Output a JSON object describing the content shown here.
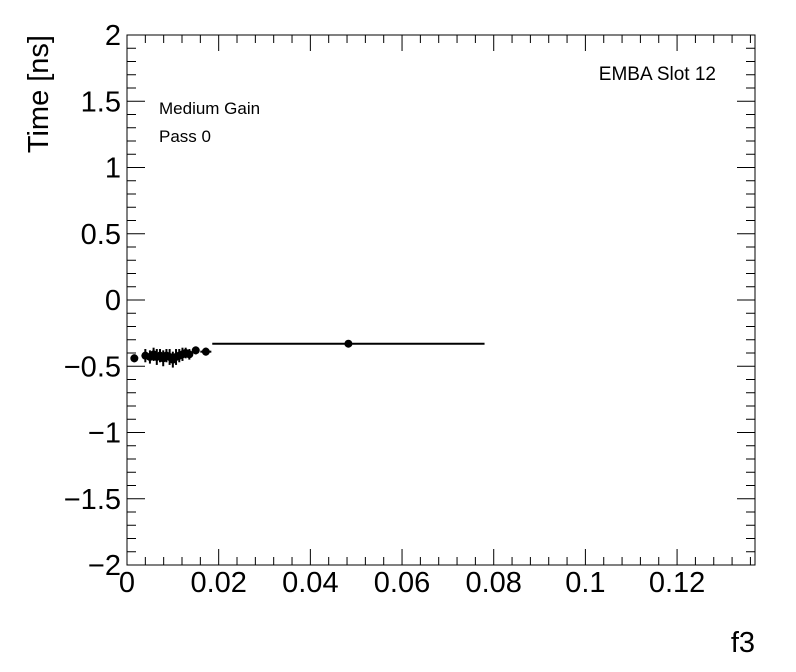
{
  "chart_data": {
    "type": "scatter",
    "title": "",
    "xlabel": "f3",
    "ylabel": "Time [ns]",
    "xlim": [
      0,
      0.137
    ],
    "ylim": [
      -2,
      2
    ],
    "grid": false,
    "x_ticks": [
      0,
      0.02,
      0.04,
      0.06,
      0.08,
      0.1,
      0.12
    ],
    "x_tick_labels": [
      "0",
      "0.02",
      "0.04",
      "0.06",
      "0.08",
      "0.1",
      "0.12"
    ],
    "y_ticks": [
      -2,
      -1.5,
      -1,
      -0.5,
      0,
      0.5,
      1,
      1.5,
      2
    ],
    "y_tick_labels": [
      "−2",
      "−1.5",
      "−1",
      "−0.5",
      "0",
      "0.5",
      "1",
      "1.5",
      "2"
    ],
    "annotations": {
      "top_right": "EMBA Slot 12",
      "line1": "Medium Gain",
      "line2": "Pass 0"
    },
    "series": [
      {
        "points": [
          {
            "x": 0.0016,
            "y": -0.44,
            "xerr": 0.0008,
            "yerr": 0.03
          },
          {
            "x": 0.004,
            "y": -0.42,
            "xerr": 0.0006,
            "yerr": 0.05
          },
          {
            "x": 0.005,
            "y": -0.43,
            "xerr": 0.0005,
            "yerr": 0.05
          },
          {
            "x": 0.0058,
            "y": -0.41,
            "xerr": 0.0004,
            "yerr": 0.05
          },
          {
            "x": 0.0065,
            "y": -0.43,
            "xerr": 0.0004,
            "yerr": 0.06
          },
          {
            "x": 0.0072,
            "y": -0.42,
            "xerr": 0.0004,
            "yerr": 0.05
          },
          {
            "x": 0.0079,
            "y": -0.44,
            "xerr": 0.0004,
            "yerr": 0.06
          },
          {
            "x": 0.0086,
            "y": -0.42,
            "xerr": 0.0004,
            "yerr": 0.05
          },
          {
            "x": 0.0093,
            "y": -0.43,
            "xerr": 0.0004,
            "yerr": 0.06
          },
          {
            "x": 0.01,
            "y": -0.45,
            "xerr": 0.0004,
            "yerr": 0.06
          },
          {
            "x": 0.0107,
            "y": -0.43,
            "xerr": 0.0004,
            "yerr": 0.06
          },
          {
            "x": 0.0114,
            "y": -0.42,
            "xerr": 0.0004,
            "yerr": 0.05
          },
          {
            "x": 0.0121,
            "y": -0.41,
            "xerr": 0.0004,
            "yerr": 0.05
          },
          {
            "x": 0.0128,
            "y": -0.4,
            "xerr": 0.0004,
            "yerr": 0.04
          },
          {
            "x": 0.0136,
            "y": -0.41,
            "xerr": 0.0005,
            "yerr": 0.04
          },
          {
            "x": 0.015,
            "y": -0.38,
            "xerr": 0.0008,
            "yerr": 0.03
          },
          {
            "x": 0.0172,
            "y": -0.39,
            "xerr": 0.0012,
            "yerr": 0.03
          },
          {
            "x": 0.0483,
            "y": -0.33,
            "xerr": 0.0297,
            "yerr": 0.01
          }
        ]
      }
    ]
  }
}
